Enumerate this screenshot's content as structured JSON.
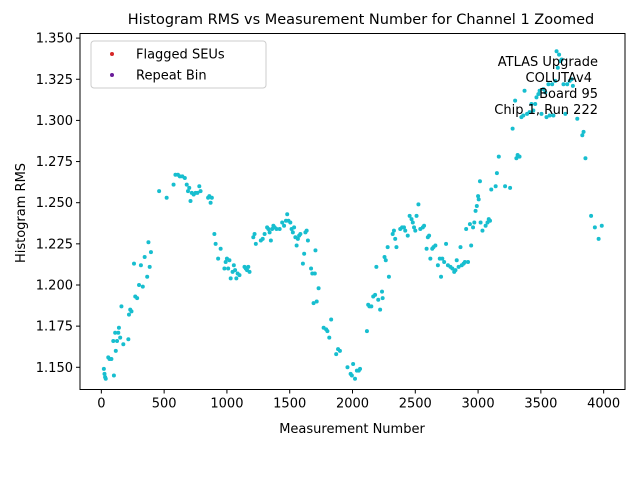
{
  "chart_data": {
    "type": "scatter",
    "title": "Histogram RMS vs Measurement Number for Channel 1 Zoomed",
    "xlabel": "Measurement Number",
    "ylabel": "Histogram RMS",
    "xlim": [
      -170,
      4170
    ],
    "ylim": [
      1.1365,
      1.3528
    ],
    "xticks": [
      0,
      500,
      1000,
      1500,
      2000,
      2500,
      3000,
      3500,
      4000
    ],
    "yticks": [
      1.15,
      1.175,
      1.2,
      1.225,
      1.25,
      1.275,
      1.3,
      1.325,
      1.35
    ],
    "grid": false,
    "legend_position": "top-left",
    "legend": [
      {
        "label": "Flagged SEUs",
        "color": "#d62728"
      },
      {
        "label": "Repeat Bin",
        "color": "#6a1b9a"
      }
    ],
    "annotation": [
      "ATLAS Upgrade",
      "COLUTAv4",
      "Board 95",
      "Chip 1, Run 222"
    ],
    "point_color": "#17becf",
    "series": [
      {
        "points": [
          [
            20,
            1.149
          ],
          [
            25,
            1.146
          ],
          [
            30,
            1.144
          ],
          [
            35,
            1.143
          ],
          [
            55,
            1.156
          ],
          [
            65,
            1.155
          ],
          [
            80,
            1.155
          ],
          [
            95,
            1.166
          ],
          [
            100,
            1.145
          ],
          [
            110,
            1.171
          ],
          [
            115,
            1.16
          ],
          [
            125,
            1.166
          ],
          [
            135,
            1.171
          ],
          [
            140,
            1.174
          ],
          [
            150,
            1.168
          ],
          [
            160,
            1.187
          ],
          [
            175,
            1.164
          ],
          [
            215,
            1.167
          ],
          [
            220,
            1.182
          ],
          [
            230,
            1.185
          ],
          [
            240,
            1.184
          ],
          [
            260,
            1.213
          ],
          [
            270,
            1.193
          ],
          [
            285,
            1.192
          ],
          [
            300,
            1.2
          ],
          [
            315,
            1.212
          ],
          [
            330,
            1.199
          ],
          [
            345,
            1.217
          ],
          [
            365,
            1.205
          ],
          [
            375,
            1.226
          ],
          [
            385,
            1.211
          ],
          [
            395,
            1.22
          ],
          [
            460,
            1.257
          ],
          [
            520,
            1.253
          ],
          [
            575,
            1.261
          ],
          [
            590,
            1.267
          ],
          [
            610,
            1.267
          ],
          [
            625,
            1.266
          ],
          [
            645,
            1.266
          ],
          [
            665,
            1.265
          ],
          [
            680,
            1.261
          ],
          [
            690,
            1.257
          ],
          [
            700,
            1.259
          ],
          [
            710,
            1.251
          ],
          [
            720,
            1.256
          ],
          [
            735,
            1.255
          ],
          [
            750,
            1.256
          ],
          [
            765,
            1.256
          ],
          [
            780,
            1.26
          ],
          [
            790,
            1.257
          ],
          [
            850,
            1.253
          ],
          [
            860,
            1.254
          ],
          [
            870,
            1.25
          ],
          [
            880,
            1.253
          ],
          [
            900,
            1.231
          ],
          [
            910,
            1.225
          ],
          [
            930,
            1.216
          ],
          [
            950,
            1.222
          ],
          [
            980,
            1.21
          ],
          [
            990,
            1.214
          ],
          [
            1000,
            1.216
          ],
          [
            1010,
            1.21
          ],
          [
            1020,
            1.215
          ],
          [
            1030,
            1.204
          ],
          [
            1045,
            1.208
          ],
          [
            1055,
            1.212
          ],
          [
            1065,
            1.209
          ],
          [
            1075,
            1.204
          ],
          [
            1085,
            1.207
          ],
          [
            1100,
            1.206
          ],
          [
            1140,
            1.211
          ],
          [
            1150,
            1.21
          ],
          [
            1160,
            1.209
          ],
          [
            1170,
            1.211
          ],
          [
            1180,
            1.208
          ],
          [
            1210,
            1.229
          ],
          [
            1220,
            1.231
          ],
          [
            1230,
            1.225
          ],
          [
            1270,
            1.227
          ],
          [
            1285,
            1.228
          ],
          [
            1300,
            1.231
          ],
          [
            1320,
            1.235
          ],
          [
            1330,
            1.234
          ],
          [
            1340,
            1.232
          ],
          [
            1350,
            1.227
          ],
          [
            1360,
            1.234
          ],
          [
            1370,
            1.236
          ],
          [
            1380,
            1.235
          ],
          [
            1395,
            1.234
          ],
          [
            1420,
            1.234
          ],
          [
            1440,
            1.238
          ],
          [
            1455,
            1.236
          ],
          [
            1470,
            1.239
          ],
          [
            1480,
            1.243
          ],
          [
            1490,
            1.239
          ],
          [
            1505,
            1.238
          ],
          [
            1515,
            1.234
          ],
          [
            1525,
            1.232
          ],
          [
            1535,
            1.235
          ],
          [
            1545,
            1.229
          ],
          [
            1555,
            1.224
          ],
          [
            1565,
            1.228
          ],
          [
            1575,
            1.23
          ],
          [
            1585,
            1.231
          ],
          [
            1605,
            1.213
          ],
          [
            1615,
            1.219
          ],
          [
            1625,
            1.232
          ],
          [
            1635,
            1.233
          ],
          [
            1645,
            1.227
          ],
          [
            1670,
            1.21
          ],
          [
            1680,
            1.207
          ],
          [
            1690,
            1.189
          ],
          [
            1700,
            1.207
          ],
          [
            1705,
            1.221
          ],
          [
            1715,
            1.19
          ],
          [
            1730,
            1.198
          ],
          [
            1770,
            1.174
          ],
          [
            1790,
            1.173
          ],
          [
            1800,
            1.172
          ],
          [
            1815,
            1.168
          ],
          [
            1830,
            1.179
          ],
          [
            1870,
            1.158
          ],
          [
            1885,
            1.161
          ],
          [
            1900,
            1.16
          ],
          [
            1960,
            1.15
          ],
          [
            1985,
            1.146
          ],
          [
            1995,
            1.145
          ],
          [
            2005,
            1.152
          ],
          [
            2020,
            1.143
          ],
          [
            2035,
            1.148
          ],
          [
            2050,
            1.148
          ],
          [
            2060,
            1.149
          ],
          [
            2115,
            1.172
          ],
          [
            2125,
            1.188
          ],
          [
            2135,
            1.187
          ],
          [
            2150,
            1.187
          ],
          [
            2165,
            1.193
          ],
          [
            2180,
            1.194
          ],
          [
            2190,
            1.211
          ],
          [
            2205,
            1.191
          ],
          [
            2220,
            1.185
          ],
          [
            2235,
            1.196
          ],
          [
            2240,
            1.192
          ],
          [
            2255,
            1.217
          ],
          [
            2265,
            1.215
          ],
          [
            2280,
            1.223
          ],
          [
            2290,
            1.205
          ],
          [
            2320,
            1.231
          ],
          [
            2330,
            1.233
          ],
          [
            2340,
            1.228
          ],
          [
            2350,
            1.223
          ],
          [
            2380,
            1.234
          ],
          [
            2395,
            1.235
          ],
          [
            2410,
            1.235
          ],
          [
            2420,
            1.233
          ],
          [
            2440,
            1.23
          ],
          [
            2455,
            1.242
          ],
          [
            2470,
            1.24
          ],
          [
            2480,
            1.238
          ],
          [
            2490,
            1.235
          ],
          [
            2500,
            1.233
          ],
          [
            2510,
            1.242
          ],
          [
            2525,
            1.249
          ],
          [
            2540,
            1.234
          ],
          [
            2560,
            1.235
          ],
          [
            2570,
            1.236
          ],
          [
            2590,
            1.222
          ],
          [
            2600,
            1.229
          ],
          [
            2610,
            1.23
          ],
          [
            2620,
            1.216
          ],
          [
            2635,
            1.222
          ],
          [
            2645,
            1.223
          ],
          [
            2660,
            1.224
          ],
          [
            2680,
            1.212
          ],
          [
            2695,
            1.216
          ],
          [
            2705,
            1.205
          ],
          [
            2715,
            1.216
          ],
          [
            2730,
            1.214
          ],
          [
            2745,
            1.225
          ],
          [
            2760,
            1.212
          ],
          [
            2780,
            1.211
          ],
          [
            2795,
            1.21
          ],
          [
            2810,
            1.208
          ],
          [
            2820,
            1.209
          ],
          [
            2830,
            1.215
          ],
          [
            2845,
            1.211
          ],
          [
            2860,
            1.223
          ],
          [
            2870,
            1.212
          ],
          [
            2885,
            1.213
          ],
          [
            2895,
            1.214
          ],
          [
            2905,
            1.234
          ],
          [
            2920,
            1.214
          ],
          [
            2935,
            1.237
          ],
          [
            2945,
            1.224
          ],
          [
            2960,
            1.235
          ],
          [
            2970,
            1.238
          ],
          [
            2980,
            1.245
          ],
          [
            2990,
            1.248
          ],
          [
            3000,
            1.254
          ],
          [
            3005,
            1.252
          ],
          [
            3015,
            1.263
          ],
          [
            3020,
            1.238
          ],
          [
            3035,
            1.233
          ],
          [
            3060,
            1.236
          ],
          [
            3075,
            1.238
          ],
          [
            3085,
            1.24
          ],
          [
            3095,
            1.239
          ],
          [
            3105,
            1.258
          ],
          [
            3140,
            1.26
          ],
          [
            3150,
            1.268
          ],
          [
            3165,
            1.278
          ],
          [
            3215,
            1.26
          ],
          [
            3255,
            1.259
          ],
          [
            3275,
            1.295
          ],
          [
            3295,
            1.312
          ],
          [
            3305,
            1.277
          ],
          [
            3315,
            1.279
          ],
          [
            3330,
            1.278
          ],
          [
            3345,
            1.302
          ],
          [
            3360,
            1.303
          ],
          [
            3370,
            1.318
          ],
          [
            3390,
            1.304
          ],
          [
            3410,
            1.305
          ],
          [
            3425,
            1.31
          ],
          [
            3440,
            1.306
          ],
          [
            3455,
            1.31
          ],
          [
            3465,
            1.314
          ],
          [
            3480,
            1.316
          ],
          [
            3490,
            1.318
          ],
          [
            3505,
            1.304
          ],
          [
            3520,
            1.319
          ],
          [
            3535,
            1.317
          ],
          [
            3545,
            1.302
          ],
          [
            3560,
            1.322
          ],
          [
            3570,
            1.303
          ],
          [
            3590,
            1.322
          ],
          [
            3600,
            1.303
          ],
          [
            3615,
            1.324
          ],
          [
            3625,
            1.342
          ],
          [
            3635,
            1.332
          ],
          [
            3645,
            1.34
          ],
          [
            3655,
            1.336
          ],
          [
            3665,
            1.337
          ],
          [
            3680,
            1.322
          ],
          [
            3695,
            1.304
          ],
          [
            3710,
            1.322
          ],
          [
            3730,
            1.324
          ],
          [
            3745,
            1.325
          ],
          [
            3755,
            1.321
          ],
          [
            3790,
            1.301
          ],
          [
            3830,
            1.291
          ],
          [
            3840,
            1.293
          ],
          [
            3855,
            1.277
          ],
          [
            3900,
            1.242
          ],
          [
            3930,
            1.235
          ],
          [
            3960,
            1.228
          ],
          [
            3985,
            1.236
          ]
        ]
      }
    ]
  }
}
